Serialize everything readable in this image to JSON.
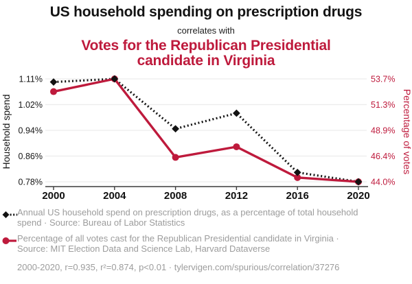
{
  "header": {
    "title": "US household spending on prescription drugs",
    "connector": "correlates with",
    "subtitle": "Votes for the Republican Presidential candidate in Virginia"
  },
  "colors": {
    "ink": "#131313",
    "accent_red": "#be1a3c",
    "grid": "#ececec",
    "axis": "#3c3c3c",
    "legend_gray": "#9c9c9c"
  },
  "chart_data": {
    "type": "line",
    "x": [
      2000,
      2004,
      2008,
      2012,
      2016,
      2020
    ],
    "x_tick_labels": [
      "2000",
      "2004",
      "2008",
      "2012",
      "2016",
      "2020"
    ],
    "grid": true,
    "left_axis": {
      "label": "Household spend",
      "tick_labels": [
        "1.11%",
        "1.02%",
        "0.94%",
        "0.86%",
        "0.78%"
      ],
      "max": 1.11,
      "min": 0.78
    },
    "right_axis": {
      "label": "Percentage of votes",
      "tick_labels": [
        "53.7%",
        "51.3%",
        "48.9%",
        "46.4%",
        "44.0%"
      ],
      "max": 53.7,
      "min": 44.0
    },
    "series": [
      {
        "name": "Annual US household spend on prescription drugs (% of total household spend)",
        "axis": "left",
        "values": [
          1.1,
          1.11,
          0.95,
          1.0,
          0.81,
          0.78
        ],
        "color": "#131313",
        "line_style": "dashed",
        "marker": "diamond"
      },
      {
        "name": "Percentage of all votes cast for the Republican Presidential candidate in Virginia",
        "axis": "right",
        "values": [
          52.5,
          53.7,
          46.3,
          47.3,
          44.4,
          44.0
        ],
        "color": "#be1a3c",
        "line_style": "solid",
        "marker": "circle"
      }
    ]
  },
  "legend": {
    "items": [
      {
        "label": "Annual US household spend on prescription drugs, as a percentage of total household spend · Source: Bureau of Labor Statistics"
      },
      {
        "label": "Percentage of all votes cast for the Republican Presidential candidate in Virginia · Source: MIT Election Data and Science Lab, Harvard Dataverse"
      }
    ]
  },
  "footer": {
    "text": "2000-2020, r=0.935, r²=0.874, p<0.01 · tylervigen.com/spurious/correlation/37276"
  }
}
